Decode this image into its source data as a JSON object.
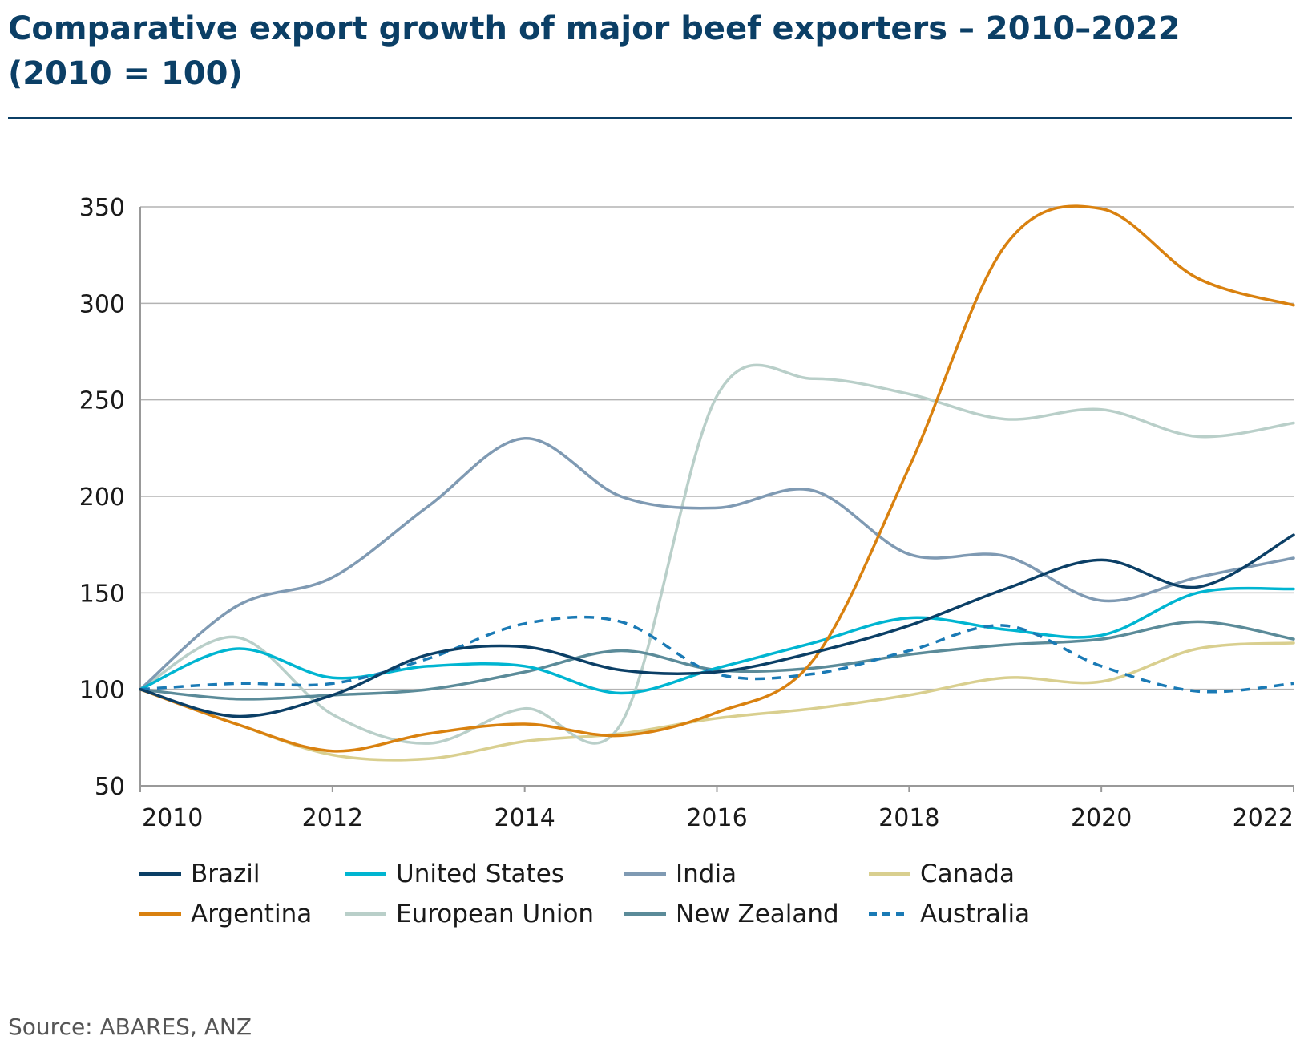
{
  "page": {
    "title_line1": "Comparative export growth of major beef exporters – 2010–2022",
    "title_line2": "(2010 = 100)",
    "source": "Source: ABARES, ANZ"
  },
  "colors": {
    "title": "#0b3f66",
    "grid": "#b3b3b3",
    "axis": "#999999"
  },
  "chart_data": {
    "type": "line",
    "ylim": [
      50,
      350
    ],
    "yticks": [
      50,
      100,
      150,
      200,
      250,
      300,
      350
    ],
    "xlim": [
      2010,
      2022
    ],
    "xticks": [
      "2010",
      "2012",
      "2014",
      "2016",
      "2018",
      "2020",
      "2022"
    ],
    "grid": "horizontal",
    "legend_position": "bottom",
    "series": [
      {
        "name": "Brazil",
        "color": "#0b3f66",
        "dash": false,
        "x": [
          2010,
          2011,
          2012,
          2013,
          2014,
          2015,
          2016,
          2017,
          2018,
          2019,
          2020,
          2021,
          2022
        ],
        "values": [
          100,
          86,
          97,
          118,
          122,
          110,
          109,
          119,
          133,
          152,
          167,
          153,
          180
        ]
      },
      {
        "name": "United States",
        "color": "#00b5d1",
        "dash": false,
        "x": [
          2010,
          2011,
          2012,
          2013,
          2014,
          2015,
          2016,
          2017,
          2018,
          2019,
          2020,
          2021,
          2022
        ],
        "values": [
          100,
          121,
          106,
          112,
          112,
          98,
          111,
          124,
          137,
          131,
          128,
          150,
          152
        ]
      },
      {
        "name": "India",
        "color": "#7f9ab3",
        "dash": false,
        "x": [
          2010,
          2011,
          2012,
          2013,
          2014,
          2015,
          2016,
          2017,
          2018,
          2019,
          2020,
          2021,
          2022
        ],
        "values": [
          100,
          143,
          158,
          195,
          230,
          200,
          194,
          203,
          170,
          169,
          146,
          158,
          168
        ]
      },
      {
        "name": "Canada",
        "color": "#d9cf8f",
        "dash": false,
        "x": [
          2010,
          2011,
          2012,
          2013,
          2014,
          2015,
          2016,
          2017,
          2018,
          2019,
          2020,
          2021,
          2022
        ],
        "values": [
          100,
          82,
          66,
          64,
          73,
          77,
          85,
          90,
          97,
          106,
          104,
          121,
          124
        ]
      },
      {
        "name": "Argentina",
        "color": "#d9810f",
        "dash": false,
        "x": [
          2010,
          2011,
          2012,
          2013,
          2014,
          2015,
          2016,
          2017,
          2018,
          2019,
          2020,
          2021,
          2022
        ],
        "values": [
          100,
          82,
          68,
          77,
          82,
          76,
          88,
          115,
          215,
          330,
          349,
          313,
          299
        ]
      },
      {
        "name": "European Union",
        "color": "#b9cfc9",
        "dash": false,
        "x": [
          2010,
          2011,
          2012,
          2013,
          2014,
          2015,
          2016,
          2017,
          2018,
          2019,
          2020,
          2021,
          2022
        ],
        "values": [
          100,
          127,
          87,
          72,
          90,
          82,
          252,
          261,
          253,
          240,
          245,
          231,
          238
        ]
      },
      {
        "name": "New Zealand",
        "color": "#5b8b99",
        "dash": false,
        "x": [
          2010,
          2011,
          2012,
          2013,
          2014,
          2015,
          2016,
          2017,
          2018,
          2019,
          2020,
          2021,
          2022
        ],
        "values": [
          100,
          95,
          97,
          100,
          109,
          120,
          110,
          111,
          118,
          123,
          126,
          135,
          126
        ]
      },
      {
        "name": "Australia",
        "color": "#1a7ab5",
        "dash": true,
        "x": [
          2010,
          2011,
          2012,
          2013,
          2014,
          2015,
          2016,
          2017,
          2018,
          2019,
          2020,
          2021,
          2022
        ],
        "values": [
          100,
          103,
          103,
          116,
          134,
          135,
          108,
          108,
          120,
          133,
          112,
          99,
          103
        ]
      }
    ]
  }
}
